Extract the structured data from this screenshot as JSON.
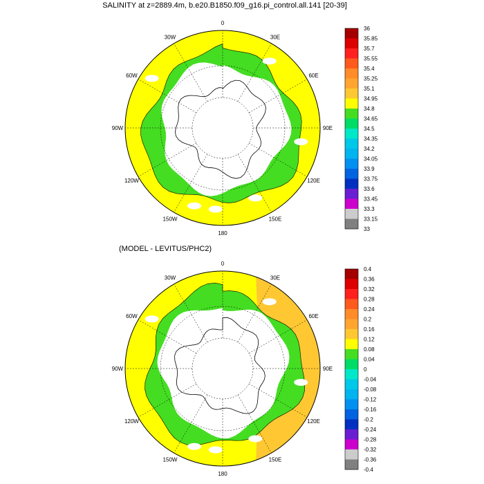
{
  "panels": [
    {
      "title": "SALINITY at z=2889.4m, b.e20.B1850.f09_g16.pi_control.all.141 [20-39]",
      "lon_labels": [
        "0",
        "30E",
        "60E",
        "90E",
        "120E",
        "150E",
        "180",
        "150W",
        "120W",
        "90W",
        "60W",
        "30W"
      ],
      "colorbar": {
        "labels": [
          "36",
          "35.85",
          "35.7",
          "35.55",
          "35.4",
          "35.25",
          "35.1",
          "34.95",
          "34.8",
          "34.65",
          "34.5",
          "34.35",
          "34.2",
          "34.05",
          "33.9",
          "33.75",
          "33.6",
          "33.45",
          "33.3",
          "33.15",
          "33"
        ],
        "colors": [
          "#a50000",
          "#dd0000",
          "#ff2020",
          "#ff5a1e",
          "#ff8c28",
          "#ffa530",
          "#ffc832",
          "#ffff00",
          "#44dd22",
          "#00dd66",
          "#00e8c8",
          "#00c8e8",
          "#00b4f0",
          "#0090f0",
          "#0064e0",
          "#0030c0",
          "#6a1ed2",
          "#cc00cc",
          "#cccccc",
          "#808080"
        ]
      },
      "fields": {
        "outer": "#ffff00",
        "ring": "#44dd22",
        "land": "#ffffff"
      }
    },
    {
      "title": "(MODEL - LEVITUS/PHC2)",
      "lon_labels": [
        "0",
        "30E",
        "60E",
        "90E",
        "120E",
        "150E",
        "180",
        "150W",
        "120W",
        "90W",
        "60W",
        "30W"
      ],
      "colorbar": {
        "labels": [
          "0.4",
          "0.36",
          "0.32",
          "0.28",
          "0.24",
          "0.2",
          "0.16",
          "0.12",
          "0.08",
          "0.04",
          "0",
          "-0.04",
          "-0.08",
          "-0.12",
          "-0.16",
          "-0.2",
          "-0.24",
          "-0.28",
          "-0.32",
          "-0.36",
          "-0.4"
        ],
        "colors": [
          "#a50000",
          "#dd0000",
          "#ff2020",
          "#ff5a1e",
          "#ff8c28",
          "#ffa530",
          "#ffc832",
          "#ffff00",
          "#44dd22",
          "#00dd66",
          "#00e8c8",
          "#00c8e8",
          "#00b4f0",
          "#0090f0",
          "#0064e0",
          "#0030c0",
          "#6a1ed2",
          "#cc00cc",
          "#cccccc",
          "#808080"
        ]
      },
      "fields": {
        "outer": "#ffff00",
        "ring": "#44dd22",
        "land": "#ffffff",
        "patch": "#ffc832"
      }
    }
  ]
}
